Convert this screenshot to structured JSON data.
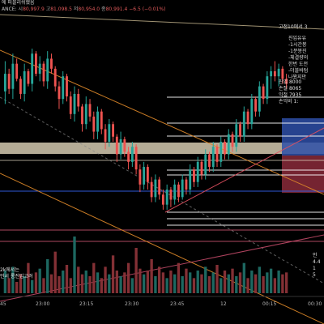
{
  "header": {
    "title": "에 퍼블리쉬했음",
    "symbol_suffix": "ANCE:",
    "open_key": "시",
    "open_val": "80,997.9",
    "high_key": "고",
    "high_val": "81,098.5",
    "low_key": "저",
    "low_val": "80,954.0",
    "close_key": "종",
    "close_val": "80,991.4",
    "change": "−6.5 (−0.01%)"
  },
  "notes": {
    "top_right": "고점10에서 3",
    "entry_block": "진입유유\n-1시간봉\n-1분봉진\n-체결량의\n한번 도전\n-더블바텀\n나왔지만",
    "trade_block": "진입 8000\n손절 8065\n익절 7935\n손익비 1:",
    "lower_right": "인\n4.4\n1\n5",
    "volume_note": "2k에서는\n인서 롱진입고려"
  },
  "xaxis": {
    "ticks": [
      {
        "label": "45"
      },
      {
        "label": "23:00"
      },
      {
        "label": "23:15"
      },
      {
        "label": "23:30"
      },
      {
        "label": "23:45"
      },
      {
        "label": "12"
      },
      {
        "label": "00:15"
      },
      {
        "label": "00:30"
      }
    ]
  },
  "colors": {
    "up": "#26a69a",
    "down": "#ef5350",
    "trend": "#e08a2a",
    "blue_zone": "#2e4fa8",
    "red_zone": "#8a2a3a",
    "cream_zone": "#f2e6c8",
    "grid": "#555555"
  },
  "chart_data": {
    "type": "candlestick",
    "candles": [
      [
        96,
        120,
        86,
        110
      ],
      [
        110,
        114,
        94,
        98
      ],
      [
        98,
        126,
        90,
        118
      ],
      [
        118,
        122,
        104,
        106
      ],
      [
        106,
        108,
        90,
        94
      ],
      [
        94,
        118,
        88,
        112
      ],
      [
        112,
        114,
        100,
        102
      ],
      [
        102,
        130,
        96,
        126
      ],
      [
        126,
        128,
        108,
        110
      ],
      [
        110,
        124,
        104,
        118
      ],
      [
        118,
        120,
        100,
        104
      ],
      [
        104,
        128,
        98,
        122
      ],
      [
        122,
        126,
        110,
        114
      ],
      [
        114,
        116,
        96,
        100
      ],
      [
        100,
        104,
        82,
        90
      ],
      [
        90,
        112,
        86,
        108
      ],
      [
        108,
        110,
        88,
        92
      ],
      [
        92,
        96,
        74,
        78
      ],
      [
        78,
        100,
        72,
        94
      ],
      [
        94,
        98,
        80,
        84
      ],
      [
        84,
        86,
        64,
        70
      ],
      [
        70,
        92,
        66,
        86
      ],
      [
        86,
        90,
        72,
        76
      ],
      [
        76,
        80,
        58,
        64
      ],
      [
        64,
        84,
        58,
        80
      ],
      [
        80,
        82,
        62,
        66
      ],
      [
        66,
        70,
        50,
        56
      ],
      [
        56,
        74,
        52,
        70
      ],
      [
        70,
        72,
        56,
        60
      ],
      [
        60,
        62,
        40,
        46
      ],
      [
        46,
        64,
        42,
        58
      ],
      [
        58,
        60,
        44,
        48
      ],
      [
        48,
        52,
        34,
        40
      ],
      [
        40,
        56,
        36,
        52
      ],
      [
        52,
        54,
        30,
        34
      ],
      [
        34,
        38,
        16,
        22
      ],
      [
        22,
        40,
        18,
        36
      ],
      [
        36,
        38,
        18,
        24
      ],
      [
        24,
        28,
        8,
        12
      ],
      [
        12,
        30,
        8,
        26
      ],
      [
        26,
        28,
        10,
        14
      ],
      [
        14,
        18,
        2,
        6
      ],
      [
        6,
        22,
        2,
        18
      ],
      [
        18,
        20,
        4,
        10
      ],
      [
        10,
        26,
        6,
        22
      ],
      [
        22,
        24,
        8,
        12
      ],
      [
        12,
        30,
        10,
        26
      ],
      [
        26,
        28,
        14,
        18
      ],
      [
        18,
        38,
        14,
        34
      ],
      [
        34,
        36,
        20,
        24
      ],
      [
        24,
        44,
        20,
        40
      ],
      [
        40,
        42,
        26,
        30
      ],
      [
        30,
        50,
        26,
        46
      ],
      [
        46,
        48,
        32,
        36
      ],
      [
        36,
        56,
        32,
        52
      ],
      [
        52,
        54,
        36,
        40
      ],
      [
        40,
        60,
        36,
        56
      ],
      [
        56,
        58,
        42,
        46
      ],
      [
        46,
        66,
        42,
        62
      ],
      [
        62,
        64,
        48,
        52
      ],
      [
        52,
        74,
        48,
        70
      ],
      [
        70,
        72,
        56,
        60
      ],
      [
        60,
        84,
        56,
        80
      ],
      [
        80,
        82,
        66,
        70
      ],
      [
        70,
        94,
        66,
        90
      ],
      [
        90,
        92,
        76,
        80
      ],
      [
        80,
        104,
        76,
        100
      ],
      [
        100,
        102,
        86,
        90
      ],
      [
        90,
        112,
        86,
        108
      ],
      [
        108,
        116,
        98,
        112
      ],
      [
        112,
        120,
        104,
        108
      ],
      [
        108,
        118,
        100,
        114
      ],
      [
        114,
        116,
        102,
        106
      ],
      [
        106,
        110,
        98,
        102
      ]
    ],
    "volumes": [
      12,
      8,
      14,
      6,
      10,
      9,
      16,
      7,
      11,
      13,
      8,
      18,
      10,
      22,
      9,
      12,
      15,
      8,
      30,
      14,
      10,
      12,
      9,
      16,
      11,
      8,
      14,
      10,
      20,
      12,
      9,
      11,
      16,
      8,
      24,
      13,
      10,
      12,
      18,
      9,
      14,
      11,
      8,
      12,
      10,
      16,
      9,
      13,
      11,
      8,
      12,
      10,
      14,
      9,
      11,
      15,
      8,
      12,
      10,
      13,
      9,
      11,
      16,
      8,
      12,
      10,
      14,
      9,
      11,
      13,
      8,
      12,
      10,
      11
    ]
  }
}
